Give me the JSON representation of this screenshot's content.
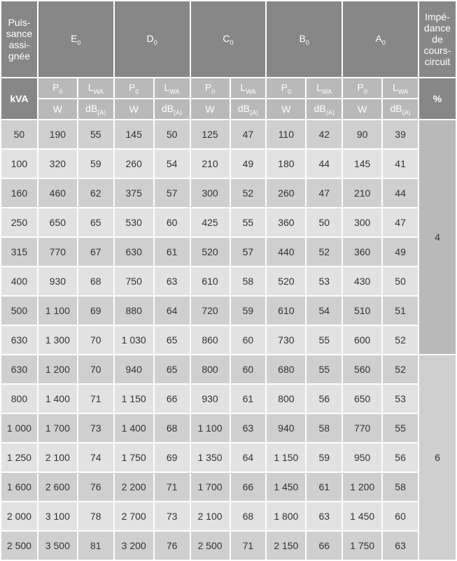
{
  "headers": {
    "puissance": "Puis-sance assi-gnée",
    "impedance": "Impé-dance de cours-circuit",
    "kva": "kVA",
    "percent": "%",
    "p0": "P",
    "lwa": "L",
    "w": "W",
    "db": "dB",
    "classes": [
      "E",
      "D",
      "C",
      "B",
      "A"
    ]
  },
  "impedances": [
    "4",
    "6"
  ],
  "block1": [
    {
      "kva": "50",
      "vals": [
        "190",
        "55",
        "145",
        "50",
        "125",
        "47",
        "110",
        "42",
        "90",
        "39"
      ]
    },
    {
      "kva": "100",
      "vals": [
        "320",
        "59",
        "260",
        "54",
        "210",
        "49",
        "180",
        "44",
        "145",
        "41"
      ]
    },
    {
      "kva": "160",
      "vals": [
        "460",
        "62",
        "375",
        "57",
        "300",
        "52",
        "260",
        "47",
        "210",
        "44"
      ]
    },
    {
      "kva": "250",
      "vals": [
        "650",
        "65",
        "530",
        "60",
        "425",
        "55",
        "360",
        "50",
        "300",
        "47"
      ]
    },
    {
      "kva": "315",
      "vals": [
        "770",
        "67",
        "630",
        "61",
        "520",
        "57",
        "440",
        "52",
        "360",
        "49"
      ]
    },
    {
      "kva": "400",
      "vals": [
        "930",
        "68",
        "750",
        "63",
        "610",
        "58",
        "520",
        "53",
        "430",
        "50"
      ]
    },
    {
      "kva": "500",
      "vals": [
        "1 100",
        "69",
        "880",
        "64",
        "720",
        "59",
        "610",
        "54",
        "510",
        "51"
      ]
    },
    {
      "kva": "630",
      "vals": [
        "1 300",
        "70",
        "1 030",
        "65",
        "860",
        "60",
        "730",
        "55",
        "600",
        "52"
      ]
    }
  ],
  "block2": [
    {
      "kva": "630",
      "vals": [
        "1 200",
        "70",
        "940",
        "65",
        "800",
        "60",
        "680",
        "55",
        "560",
        "52"
      ]
    },
    {
      "kva": "800",
      "vals": [
        "1 400",
        "71",
        "1 150",
        "66",
        "930",
        "61",
        "800",
        "56",
        "650",
        "53"
      ]
    },
    {
      "kva": "1 000",
      "vals": [
        "1 700",
        "73",
        "1 400",
        "68",
        "1 100",
        "63",
        "940",
        "58",
        "770",
        "55"
      ]
    },
    {
      "kva": "1 250",
      "vals": [
        "2 100",
        "74",
        "1 750",
        "69",
        "1 350",
        "64",
        "1 150",
        "59",
        "950",
        "56"
      ]
    },
    {
      "kva": "1 600",
      "vals": [
        "2 600",
        "76",
        "2 200",
        "71",
        "1 700",
        "66",
        "1 450",
        "61",
        "1 200",
        "58"
      ]
    },
    {
      "kva": "2 000",
      "vals": [
        "3 100",
        "78",
        "2 700",
        "73",
        "2 100",
        "68",
        "1 800",
        "63",
        "1 450",
        "60"
      ]
    },
    {
      "kva": "2 500",
      "vals": [
        "3 500",
        "81",
        "3 200",
        "76",
        "2 500",
        "71",
        "2 150",
        "66",
        "1 750",
        "63"
      ]
    }
  ]
}
